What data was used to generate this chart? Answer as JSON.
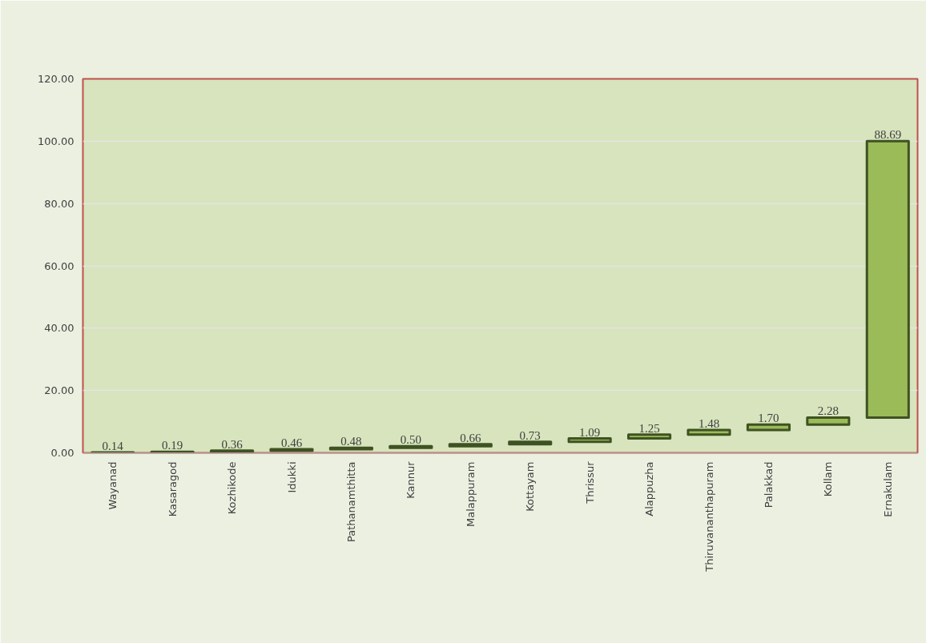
{
  "chart_data": {
    "type": "bar",
    "categories": [
      "Wayanad",
      "Kasaragod",
      "Kozhikode",
      "Idukki",
      "Pathanamthitta",
      "Kannur",
      "Malappuram",
      "Kottayam",
      "Thrissur",
      "Alappuzha",
      "Thiruvananthapuram",
      "Palakkad",
      "Kollam",
      "Ernakulam"
    ],
    "values": [
      0.14,
      0.19,
      0.36,
      0.46,
      0.48,
      0.5,
      0.66,
      0.73,
      1.09,
      1.25,
      1.48,
      1.7,
      2.28,
      88.69
    ],
    "base": [
      0,
      0.14,
      0.33,
      0.69,
      1.15,
      1.63,
      2.13,
      2.79,
      3.52,
      4.61,
      5.86,
      7.34,
      9.04,
      11.32
    ],
    "value_labels": [
      "0.14",
      "0.19",
      "0.36",
      "0.46",
      "0.48",
      "0.50",
      "0.66",
      "0.73",
      "1.09",
      "1.25",
      "1.48",
      "1.70",
      "2.28",
      "88.69"
    ],
    "color": "#9bbb59",
    "ylim": [
      0,
      120
    ],
    "yticks": [
      {
        "value": 0,
        "label": "0.00"
      },
      {
        "value": 20,
        "label": "20.00"
      },
      {
        "value": 40,
        "label": "40.00"
      },
      {
        "value": 60,
        "label": "60.00"
      },
      {
        "value": 80,
        "label": "80.00"
      },
      {
        "value": 100,
        "label": "100.00"
      },
      {
        "value": 120,
        "label": "120.00"
      }
    ],
    "grid": "y"
  }
}
